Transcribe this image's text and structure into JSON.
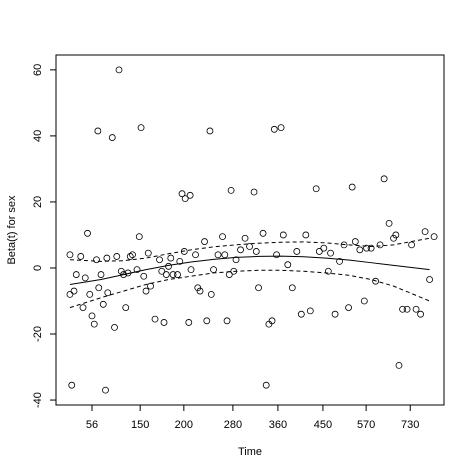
{
  "chart_data": {
    "type": "scatter",
    "xlabel": "Time",
    "ylabel": "Beta(t) for sex",
    "xlim": [
      0,
      8.62
    ],
    "ylim": [
      -41.5,
      64.5
    ],
    "xticks": [
      {
        "value": 0.8,
        "label": "56"
      },
      {
        "value": 1.87,
        "label": "150"
      },
      {
        "value": 2.84,
        "label": "200"
      },
      {
        "value": 3.93,
        "label": "280"
      },
      {
        "value": 4.93,
        "label": "360"
      },
      {
        "value": 5.93,
        "label": "450"
      },
      {
        "value": 6.89,
        "label": "570"
      },
      {
        "value": 7.87,
        "label": "730"
      }
    ],
    "yticks": [
      -40,
      -20,
      0,
      20,
      40,
      60
    ],
    "color": "#000000",
    "points": {
      "x": [
        0.31,
        0.31,
        0.35,
        0.4,
        0.45,
        0.55,
        0.6,
        0.65,
        0.7,
        0.75,
        0.8,
        0.85,
        0.9,
        0.93,
        0.95,
        1.0,
        1.05,
        1.1,
        1.13,
        1.15,
        1.25,
        1.3,
        1.35,
        1.4,
        1.45,
        1.5,
        1.55,
        1.6,
        1.65,
        1.7,
        1.8,
        1.85,
        1.89,
        1.95,
        2.0,
        2.05,
        2.1,
        2.2,
        2.3,
        2.35,
        2.4,
        2.45,
        2.5,
        2.55,
        2.6,
        2.7,
        2.75,
        2.8,
        2.85,
        2.87,
        2.95,
        2.98,
        3.0,
        3.1,
        3.15,
        3.2,
        3.3,
        3.35,
        3.42,
        3.45,
        3.5,
        3.6,
        3.7,
        3.75,
        3.8,
        3.85,
        3.89,
        3.95,
        4.0,
        4.1,
        4.2,
        4.3,
        4.4,
        4.45,
        4.5,
        4.6,
        4.67,
        4.73,
        4.8,
        4.85,
        4.9,
        5.0,
        5.05,
        5.15,
        5.25,
        5.35,
        5.45,
        5.55,
        5.65,
        5.78,
        5.85,
        5.95,
        6.05,
        6.1,
        6.2,
        6.3,
        6.4,
        6.5,
        6.58,
        6.65,
        6.75,
        6.85,
        6.9,
        7.0,
        7.1,
        7.2,
        7.29,
        7.4,
        7.5,
        7.55,
        7.62,
        7.7,
        7.8,
        7.9,
        8.0,
        8.1,
        8.2,
        8.3,
        8.4
      ],
      "y": [
        4,
        -8,
        -35.5,
        -7,
        -2,
        3.5,
        -12,
        -3,
        10.5,
        -8,
        -14.5,
        -17,
        2.5,
        41.5,
        -6,
        -2,
        -11,
        -37,
        3,
        -7.5,
        39.5,
        -18,
        3.5,
        60,
        -1,
        -2,
        -12,
        -1.5,
        3.5,
        4,
        -0.5,
        9.5,
        42.5,
        -2.5,
        -7,
        4.5,
        -5.5,
        -15.5,
        2.5,
        -1,
        -16.5,
        -2,
        0.5,
        3,
        -2,
        -2,
        2,
        22.5,
        5,
        21,
        -16.5,
        22,
        -0.5,
        4,
        -6,
        -7,
        8,
        -16,
        41.5,
        -8,
        -0.5,
        4,
        9.5,
        4,
        -16,
        -2,
        23.5,
        -1,
        2.5,
        5.5,
        9,
        6.5,
        23,
        5,
        -6,
        10.5,
        -35.5,
        -17,
        -16,
        42,
        4,
        42.5,
        10,
        1,
        -6,
        5,
        -14,
        10,
        -13,
        24,
        5,
        6,
        -1,
        4.5,
        -14,
        2,
        7,
        -12,
        24.5,
        8,
        5.5,
        -10,
        6,
        6,
        -4,
        7,
        27,
        13.5,
        9,
        10,
        -29.5,
        -12.5,
        -12.5,
        7,
        -12.5,
        -14,
        11,
        -3.5,
        9.5
      ]
    },
    "fit": {
      "x": [
        0.31,
        1,
        1.5,
        2,
        2.5,
        3,
        3.5,
        4,
        4.5,
        5,
        5.5,
        6,
        6.5,
        7,
        7.5,
        8.3
      ],
      "values": [
        -5,
        -3.5,
        -2,
        -0.5,
        0.8,
        1.8,
        2.6,
        3.2,
        3.5,
        3.6,
        3.4,
        3,
        2.4,
        1.6,
        0.8,
        -0.5
      ],
      "upper": [
        2.5,
        2,
        2.2,
        3,
        4.3,
        5.5,
        6.4,
        7,
        7.5,
        7.8,
        7.9,
        7.6,
        7,
        6.5,
        7,
        9
      ],
      "lower": [
        -12,
        -9,
        -7,
        -5,
        -3.5,
        -2.5,
        -1.5,
        -1,
        -0.7,
        -0.7,
        -1,
        -1.5,
        -2.2,
        -3.5,
        -5.5,
        -10
      ]
    }
  }
}
